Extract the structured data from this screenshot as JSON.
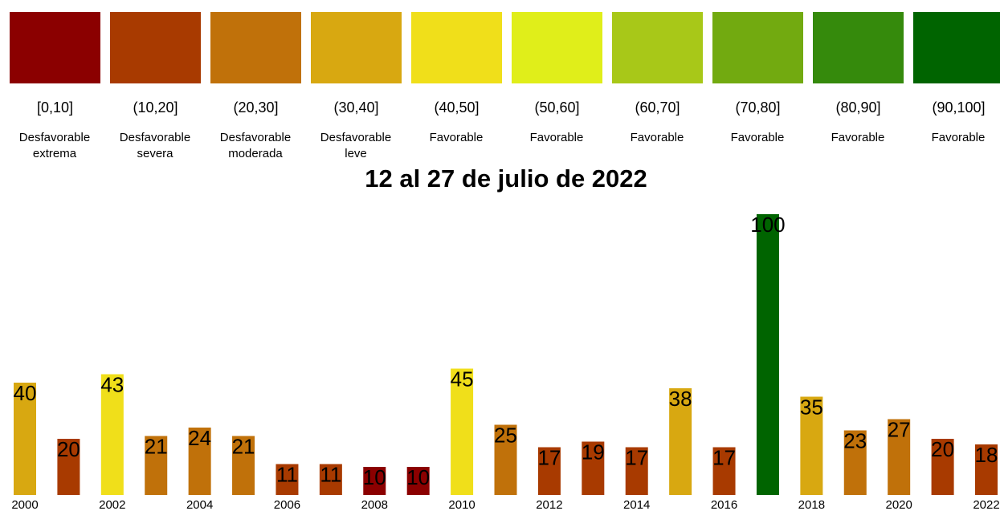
{
  "legend": [
    {
      "range": "[0,10]",
      "label": "Desfavorable extrema",
      "color": "#8b0000"
    },
    {
      "range": "(10,20]",
      "label": "Desfavorable severa",
      "color": "#a83a00"
    },
    {
      "range": "(20,30]",
      "label": "Desfavorable moderada",
      "color": "#c0710a"
    },
    {
      "range": "(30,40]",
      "label": "Desfavorable leve",
      "color": "#d8a811"
    },
    {
      "range": "(40,50]",
      "label": "Favorable",
      "color": "#f0df1a"
    },
    {
      "range": "(50,60]",
      "label": "Favorable",
      "color": "#e0ee1a"
    },
    {
      "range": "(60,70]",
      "label": "Favorable",
      "color": "#a8c818"
    },
    {
      "range": "(70,80]",
      "label": "Favorable",
      "color": "#72aa10"
    },
    {
      "range": "(80,90]",
      "label": "Favorable",
      "color": "#358a0c"
    },
    {
      "range": "(90,100]",
      "label": "Favorable",
      "color": "#006400"
    }
  ],
  "chart_data": {
    "type": "bar",
    "title": "12 al 27 de julio de 2022",
    "categories": [
      "2000",
      null,
      "2002",
      null,
      "2004",
      null,
      "2006",
      null,
      "2008",
      null,
      "2010",
      null,
      "2012",
      null,
      "2014",
      null,
      "2016",
      null,
      "2018",
      null,
      "2020",
      null,
      "2022"
    ],
    "values": [
      40,
      20,
      43,
      21,
      24,
      21,
      11,
      11,
      10,
      10,
      45,
      25,
      17,
      19,
      17,
      38,
      17,
      100,
      35,
      23,
      27,
      20,
      18
    ],
    "colors": [
      "#d8a811",
      "#a83a00",
      "#f0df1a",
      "#c0710a",
      "#c0710a",
      "#c0710a",
      "#a83a00",
      "#a83a00",
      "#8b0000",
      "#8b0000",
      "#f0df1a",
      "#c0710a",
      "#a83a00",
      "#a83a00",
      "#a83a00",
      "#d8a811",
      "#a83a00",
      "#006400",
      "#d8a811",
      "#c0710a",
      "#c0710a",
      "#a83a00",
      "#a83a00"
    ],
    "ylim": [
      0,
      100
    ]
  }
}
